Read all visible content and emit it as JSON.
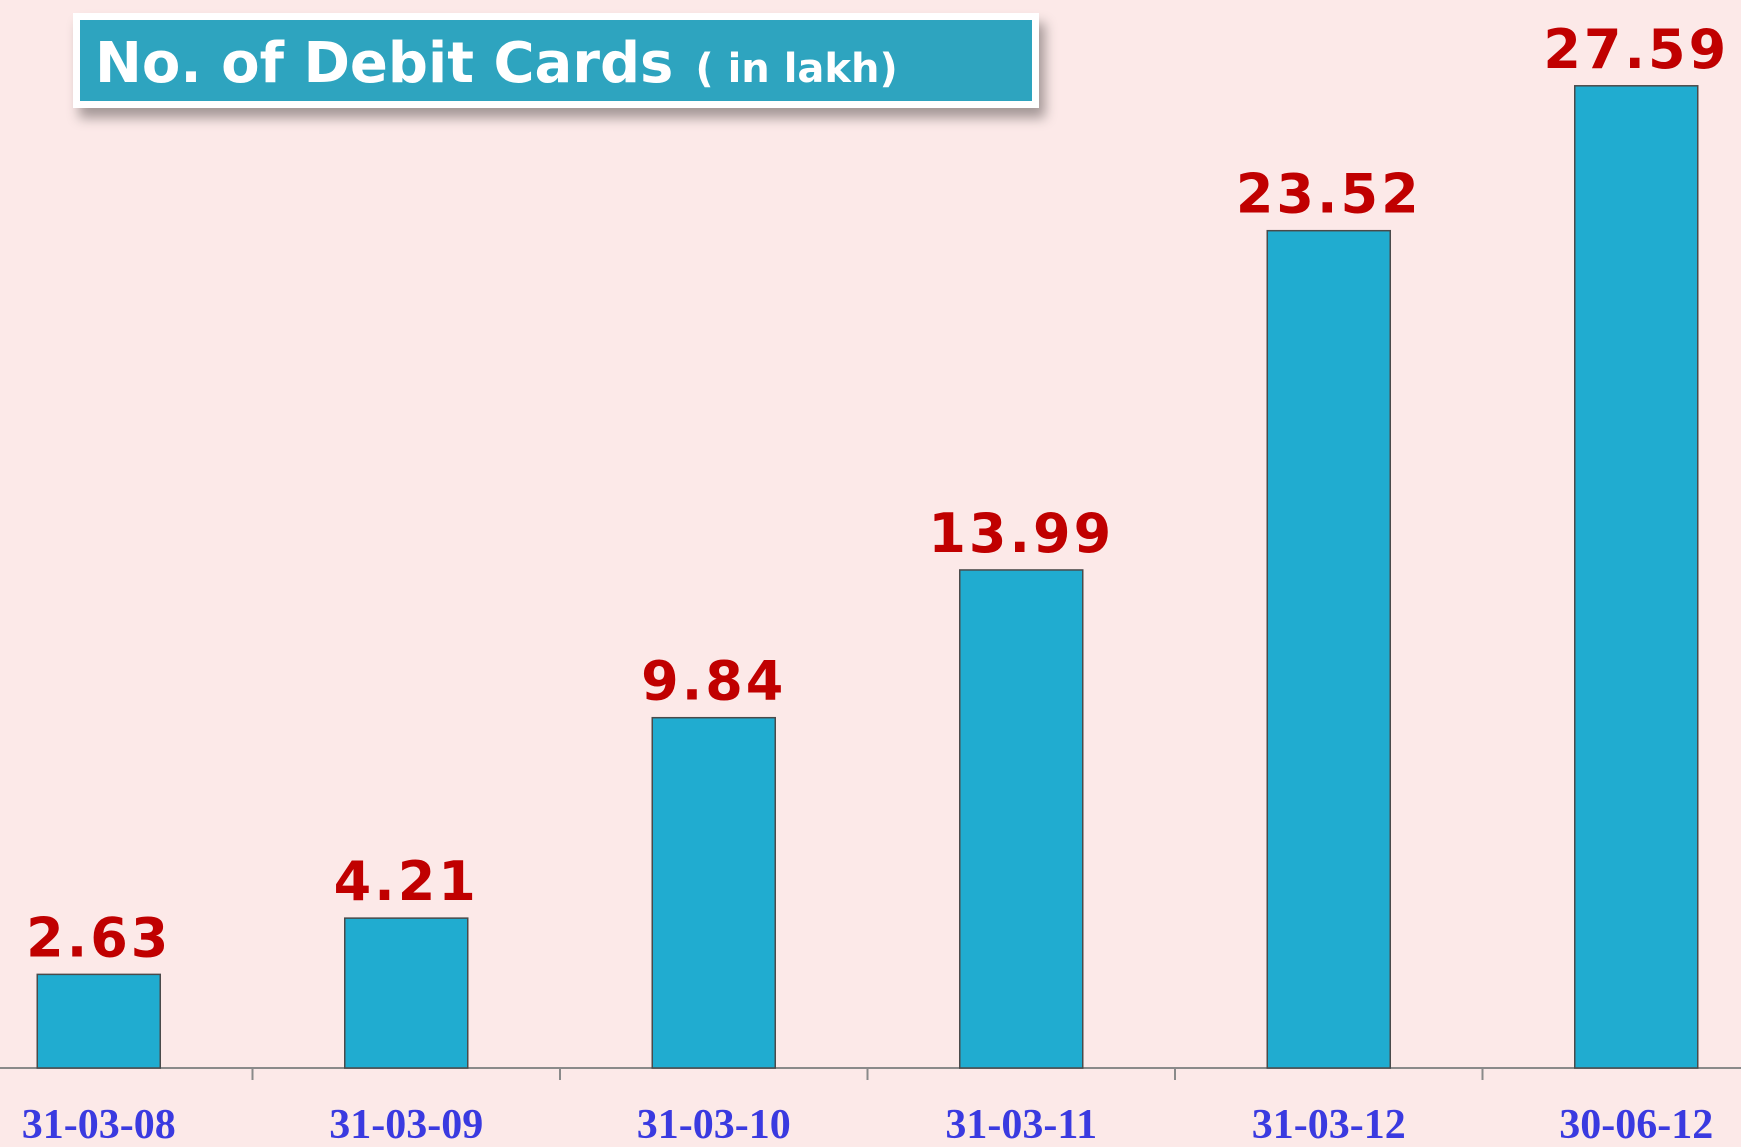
{
  "chart_data": {
    "type": "bar",
    "title": "No. of Debit Cards",
    "subtitle": "( in lakh)",
    "categories": [
      "31-03-08",
      "31-03-09",
      "31-03-10",
      "31-03-11",
      "31-03-12",
      "30-06-12"
    ],
    "values": [
      2.63,
      4.21,
      9.84,
      13.99,
      23.52,
      27.59
    ],
    "color": "#20acd0",
    "ylim": [
      0,
      30
    ]
  }
}
